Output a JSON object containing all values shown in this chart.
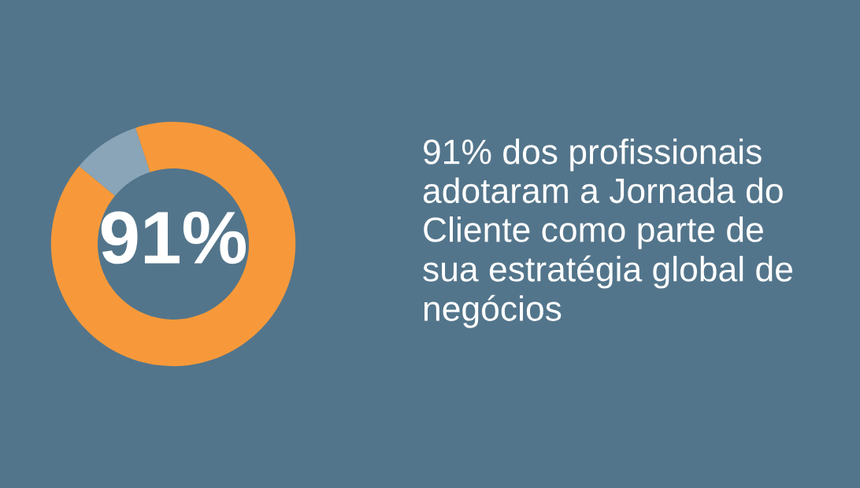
{
  "chart_data": {
    "type": "donut",
    "categories": [
      null,
      null
    ],
    "values": [
      91,
      9
    ],
    "colors": [
      "#f7993a",
      "#8aa5b8"
    ],
    "value_labels": [
      "91%",
      null
    ],
    "annotations": [
      "91% dos profissionais\nadotaram a Jornada do\nCliente como parte de\nsua estratégia global de\nnegócios"
    ],
    "legend": false
  }
}
